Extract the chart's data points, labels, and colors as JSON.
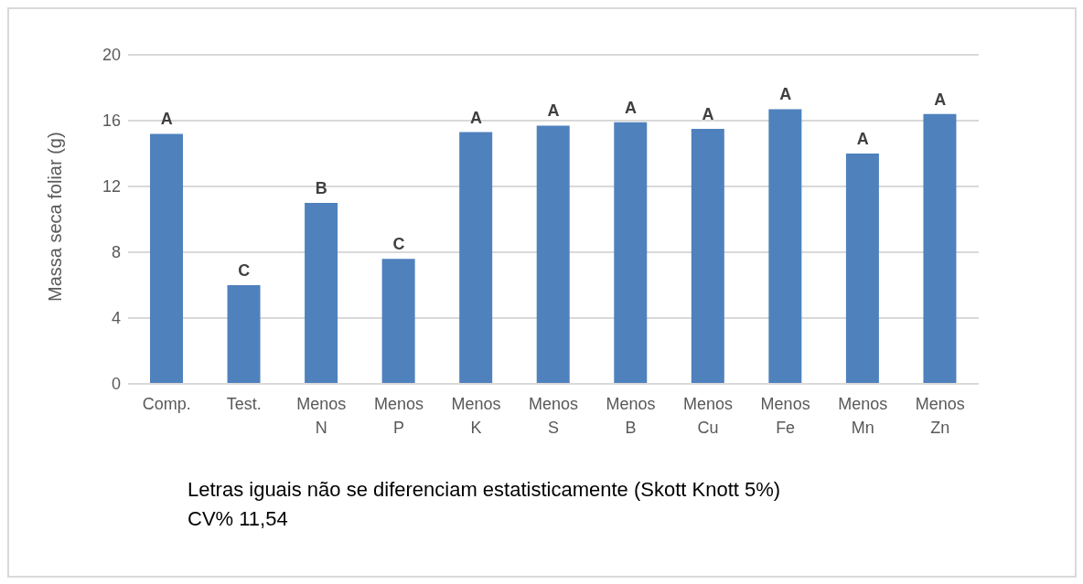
{
  "chart_data": {
    "type": "bar",
    "ylabel": "Massa seca foliar (g)",
    "categories": [
      "Comp.",
      "Test.",
      "Menos N",
      "Menos P",
      "Menos K",
      "Menos S",
      "Menos B",
      "Menos Cu",
      "Menos Fe",
      "Menos Mn",
      "Menos Zn"
    ],
    "values": [
      15.2,
      6.0,
      11.0,
      7.6,
      15.3,
      15.7,
      15.9,
      15.5,
      16.7,
      14.0,
      16.4
    ],
    "color": "#4f81bd",
    "ylim": [
      0,
      20
    ],
    "yticks": [
      0,
      4,
      8,
      12,
      16,
      20
    ],
    "grid": "y",
    "annotations": [
      {
        "text": "A",
        "x": "Comp.",
        "y": 15.2
      },
      {
        "text": "C",
        "x": "Test.",
        "y": 6.0
      },
      {
        "text": "B",
        "x": "Menos N",
        "y": 11.0
      },
      {
        "text": "C",
        "x": "Menos P",
        "y": 7.6
      },
      {
        "text": "A",
        "x": "Menos K",
        "y": 15.3
      },
      {
        "text": "A",
        "x": "Menos S",
        "y": 15.7
      },
      {
        "text": "A",
        "x": "Menos B",
        "y": 15.9
      },
      {
        "text": "A",
        "x": "Menos Cu",
        "y": 15.5
      },
      {
        "text": "A",
        "x": "Menos Fe",
        "y": 16.7
      },
      {
        "text": "A",
        "x": "Menos Mn",
        "y": 14.0
      },
      {
        "text": "A",
        "x": "Menos Zn",
        "y": 16.4
      },
      "Letras iguais não se diferenciam estatisticamente  (Skott Knott 5%)",
      "CV% 11,54"
    ]
  }
}
